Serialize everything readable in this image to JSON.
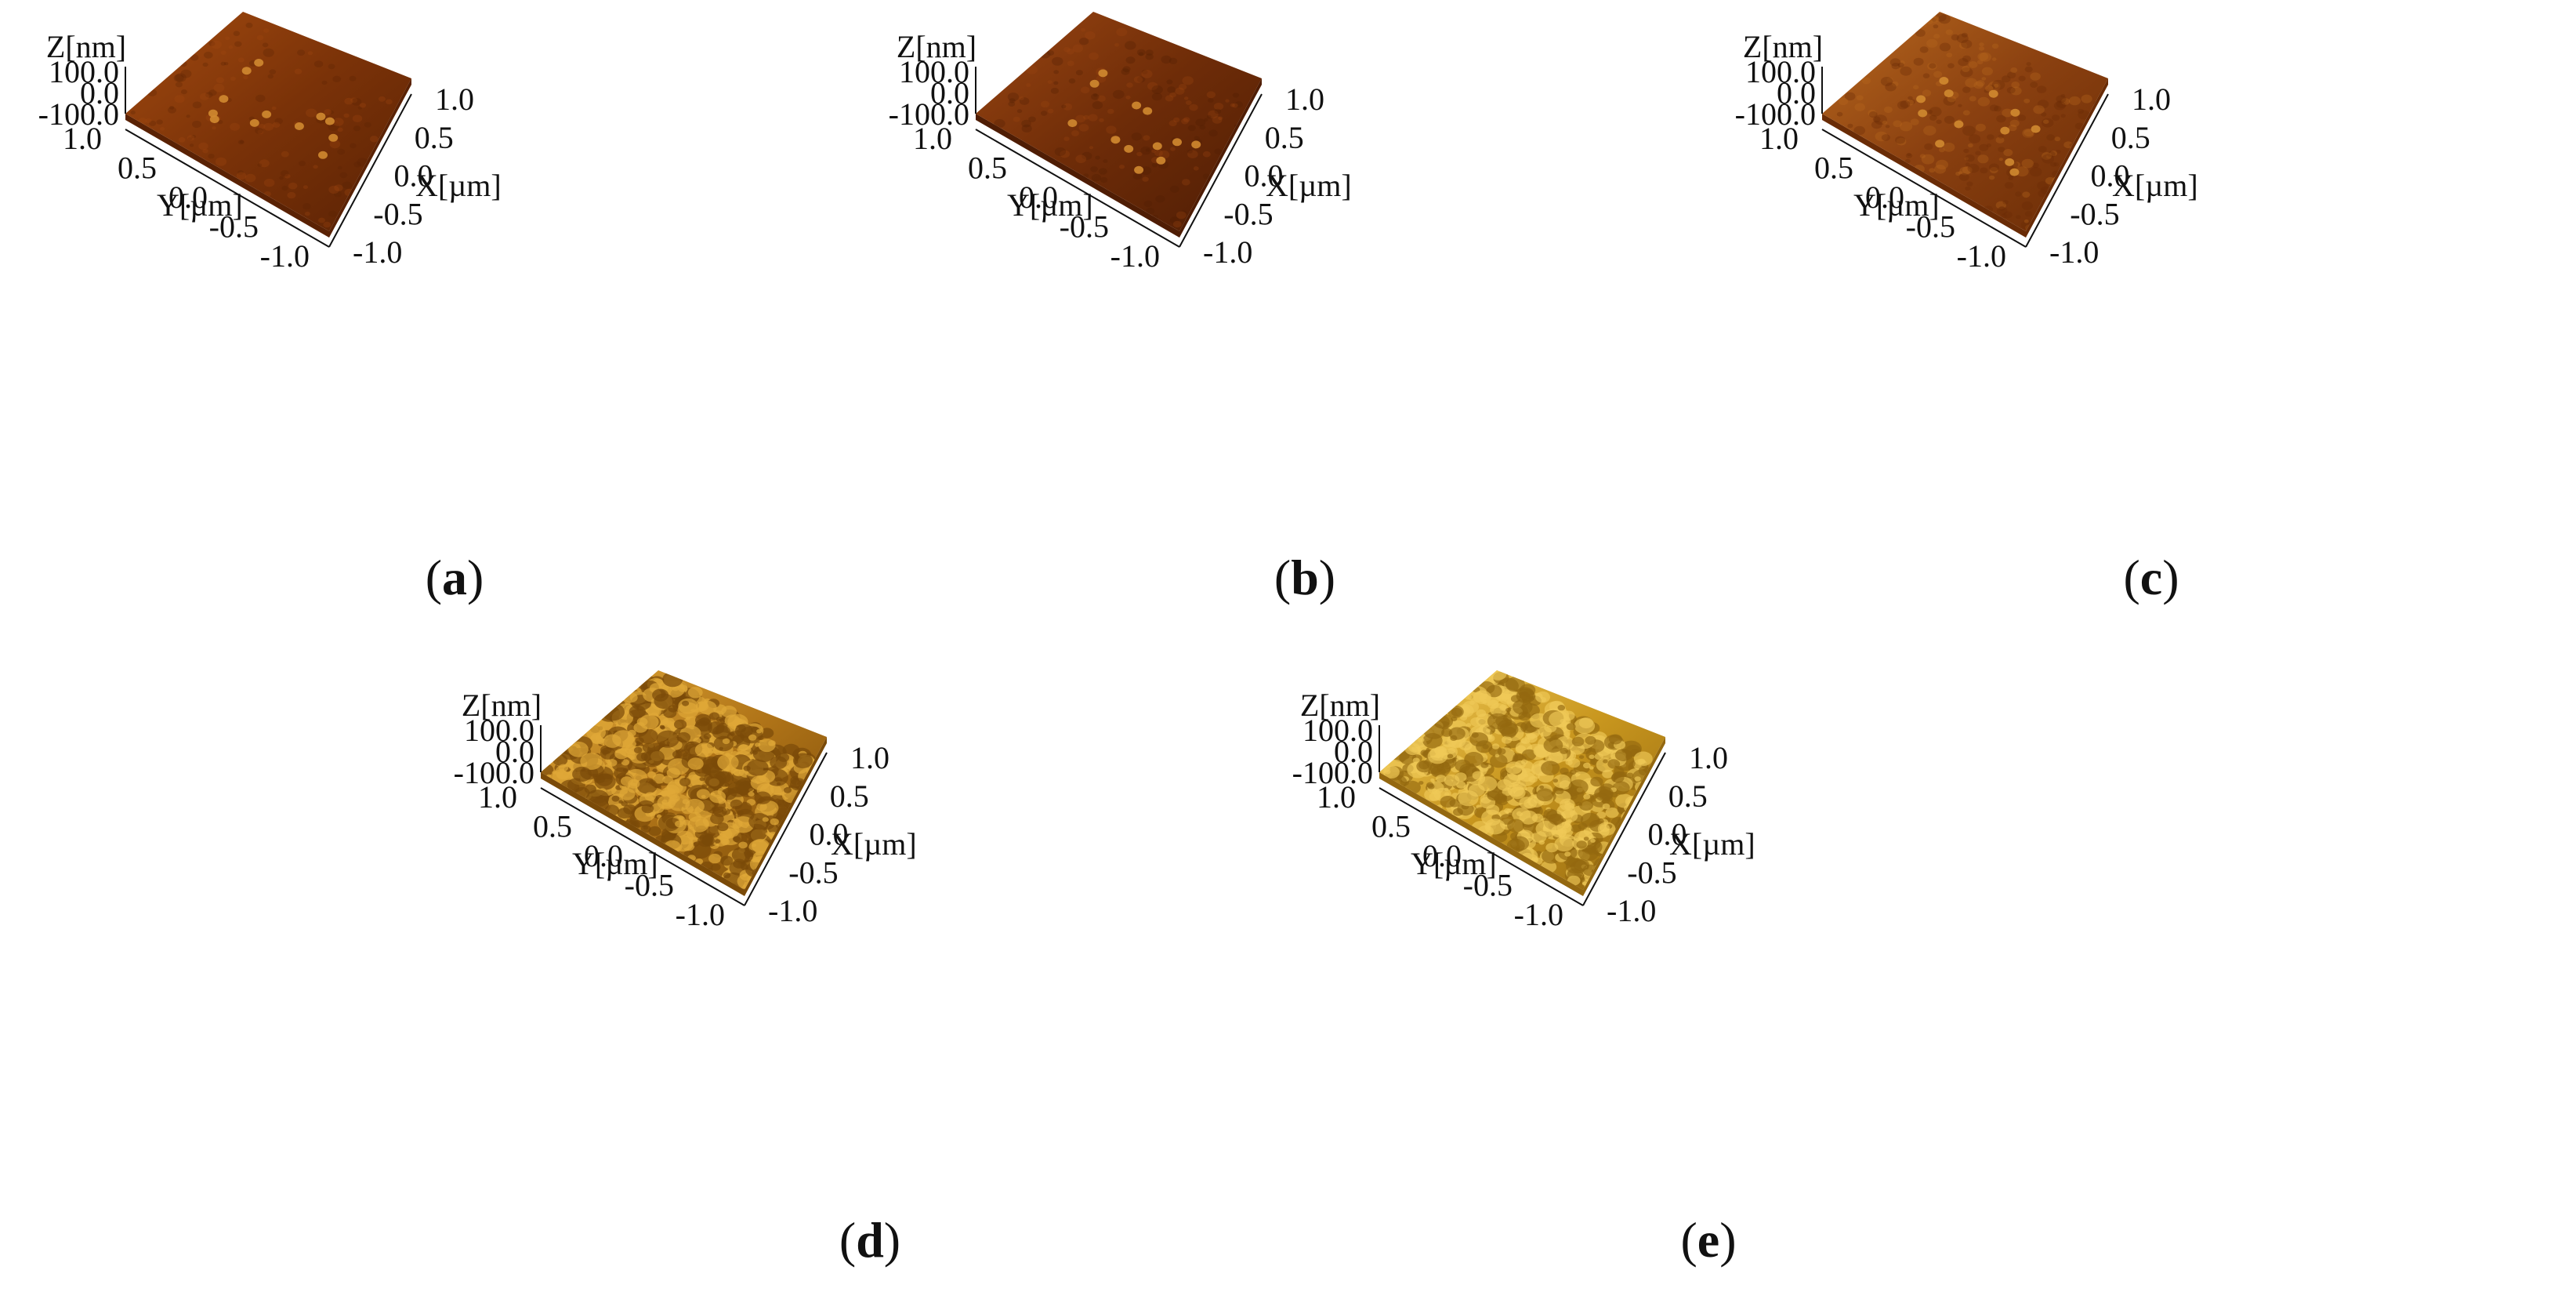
{
  "figure": {
    "panels": [
      {
        "id": "a",
        "caption": "a",
        "colors": {
          "top": "#7a3208",
          "dark": "#5a2204",
          "light": "#a24a10"
        },
        "roughness": 0.08,
        "z_label": "Z[nm]",
        "x_label": "X[µm]",
        "y_label": "Y[µm]",
        "z_ticks": [
          "100.0",
          "0.0",
          "-100.0"
        ],
        "x_ticks": [
          "-1.0",
          "-0.5",
          "0.0",
          "0.5",
          "1.0"
        ],
        "y_ticks": [
          "1.0",
          "0.5",
          "0.0",
          "-0.5",
          "-1.0"
        ]
      },
      {
        "id": "b",
        "caption": "b",
        "colors": {
          "top": "#6e2c08",
          "dark": "#4f1d04",
          "light": "#9a4612"
        },
        "roughness": 0.1,
        "z_label": "Z[nm]",
        "x_label": "X[µm]",
        "y_label": "Y[µm]",
        "z_ticks": [
          "100.0",
          "0.0",
          "-100.0"
        ],
        "x_ticks": [
          "-1.0",
          "-0.5",
          "0.0",
          "0.5",
          "1.0"
        ],
        "y_ticks": [
          "1.0",
          "0.5",
          "0.0",
          "-0.5",
          "-1.0"
        ]
      },
      {
        "id": "c",
        "caption": "c",
        "colors": {
          "top": "#8a4010",
          "dark": "#6a2c06",
          "light": "#b8681e"
        },
        "roughness": 0.2,
        "z_label": "Z[nm]",
        "x_label": "X[µm]",
        "y_label": "Y[µm]",
        "z_ticks": [
          "100.0",
          "0.0",
          "-100.0"
        ],
        "x_ticks": [
          "-1.0",
          "-0.5",
          "0.0",
          "0.5",
          "1.0"
        ],
        "y_ticks": [
          "1.0",
          "0.5",
          "0.0",
          "-0.5",
          "-1.0"
        ]
      },
      {
        "id": "d",
        "caption": "d",
        "colors": {
          "top": "#b07418",
          "dark": "#7a4a08",
          "light": "#e0a838"
        },
        "roughness": 0.9,
        "z_label": "Z[nm]",
        "x_label": "X[µm]",
        "y_label": "Y[µm]",
        "z_ticks": [
          "100.0",
          "0.0",
          "-100.0"
        ],
        "x_ticks": [
          "-1.0",
          "-0.5",
          "0.0",
          "0.5",
          "1.0"
        ],
        "y_ticks": [
          "1.0",
          "0.5",
          "0.0",
          "-0.5",
          "-1.0"
        ]
      },
      {
        "id": "e",
        "caption": "e",
        "colors": {
          "top": "#c8961e",
          "dark": "#946810",
          "light": "#f0ca58"
        },
        "roughness": 0.8,
        "z_label": "Z[nm]",
        "x_label": "X[µm]",
        "y_label": "Y[µm]",
        "z_ticks": [
          "100.0",
          "0.0",
          "-100.0"
        ],
        "x_ticks": [
          "-1.0",
          "-0.5",
          "0.0",
          "0.5",
          "1.0"
        ],
        "y_ticks": [
          "1.0",
          "0.5",
          "0.0",
          "-0.5",
          "-1.0"
        ]
      }
    ]
  }
}
